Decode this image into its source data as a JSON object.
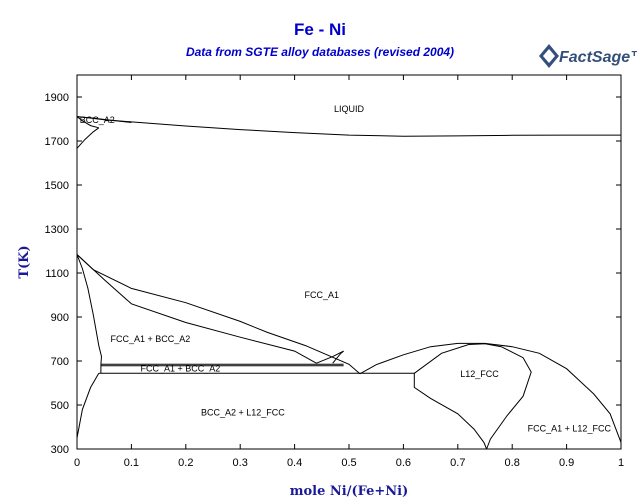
{
  "header": {
    "title": "Fe - Ni",
    "subtitle": "Data from SGTE alloy databases (revised 2004)",
    "logo_text": "FactSage™"
  },
  "chart_data": {
    "type": "line",
    "title": "Fe - Ni",
    "subtitle": "Data from SGTE alloy databases (revised 2004)",
    "xlabel": "mole Ni/(Fe+Ni)",
    "ylabel": "T(K)",
    "xlim": [
      0,
      1
    ],
    "ylim": [
      300,
      2000
    ],
    "x_ticks": [
      "0",
      "0.1",
      "0.2",
      "0.3",
      "0.4",
      "0.5",
      "0.6",
      "0.7",
      "0.8",
      "0.9",
      "1"
    ],
    "y_ticks": [
      "300",
      "500",
      "700",
      "900",
      "1100",
      "1300",
      "1500",
      "1700",
      "1900"
    ],
    "grid": false,
    "line_color": "#000000",
    "region_labels": [
      {
        "text": "LIQUID",
        "x": 0.5,
        "y": 1845
      },
      {
        "text": "BCC_A2",
        "x": 0.005,
        "y": 1795
      },
      {
        "text": "FCC_A1",
        "x": 0.45,
        "y": 1000
      },
      {
        "text": "FCC_A1 + BCC_A2",
        "x": 0.135,
        "y": 799
      },
      {
        "text": "FCC_A1 + BCC_A2",
        "x": 0.19,
        "y": 666
      },
      {
        "text": "L12_FCC",
        "x": 0.74,
        "y": 640
      },
      {
        "text": "BCC_A2 + L12_FCC",
        "x": 0.305,
        "y": 467
      },
      {
        "text": "FCC_A1 + L12_FCC",
        "x": 0.905,
        "y": 394
      }
    ],
    "series": [
      {
        "points": [
          [
            0,
            1811
          ],
          [
            0.02,
            1806
          ],
          [
            0.05,
            1797
          ],
          [
            0.1,
            1787
          ],
          [
            0.2,
            1768
          ],
          [
            0.3,
            1752
          ],
          [
            0.4,
            1738
          ],
          [
            0.5,
            1727
          ],
          [
            0.6,
            1722
          ],
          [
            0.7,
            1723
          ],
          [
            0.8,
            1726
          ],
          [
            0.9,
            1727
          ],
          [
            1,
            1727
          ]
        ]
      },
      {
        "points": [
          [
            0,
            1811
          ],
          [
            0.03,
            1804
          ],
          [
            0.06,
            1795
          ],
          [
            0.1,
            1784
          ]
        ]
      },
      {
        "points": [
          [
            0,
            1811
          ],
          [
            0.01,
            1792
          ],
          [
            0.025,
            1770
          ],
          [
            0.04,
            1760
          ]
        ]
      },
      {
        "points": [
          [
            0,
            1667
          ],
          [
            0.015,
            1708
          ],
          [
            0.03,
            1742
          ],
          [
            0.04,
            1760
          ]
        ]
      },
      {
        "points": [
          [
            0,
            1184
          ],
          [
            0.01,
            1120
          ],
          [
            0.02,
            1030
          ],
          [
            0.03,
            910
          ],
          [
            0.04,
            770
          ],
          [
            0.045,
            720
          ],
          [
            0.044,
            685
          ]
        ]
      },
      {
        "points": [
          [
            0,
            1184
          ],
          [
            0.03,
            1115
          ],
          [
            0.1,
            1030
          ],
          [
            0.2,
            965
          ],
          [
            0.3,
            880
          ],
          [
            0.35,
            830
          ],
          [
            0.42,
            770
          ],
          [
            0.5,
            685
          ],
          [
            0.52,
            642
          ]
        ]
      },
      {
        "points": [
          [
            0,
            1184
          ],
          [
            0.05,
            1070
          ],
          [
            0.1,
            960
          ],
          [
            0.2,
            875
          ],
          [
            0.3,
            808
          ],
          [
            0.4,
            745
          ],
          [
            0.44,
            690
          ]
        ]
      },
      {
        "points": [
          [
            0.044,
            685
          ],
          [
            0.49,
            685
          ]
        ]
      },
      {
        "points": [
          [
            0.044,
            678
          ],
          [
            0.49,
            678
          ]
        ]
      },
      {
        "points": [
          [
            0.44,
            690
          ],
          [
            0.47,
            720
          ],
          [
            0.49,
            745
          ]
        ]
      },
      {
        "points": [
          [
            0.47,
            690
          ],
          [
            0.485,
            735
          ],
          [
            0.49,
            745
          ]
        ]
      },
      {
        "points": [
          [
            0.04,
            644
          ],
          [
            0.62,
            644
          ]
        ]
      },
      {
        "points": [
          [
            0,
            350
          ],
          [
            0.01,
            480
          ],
          [
            0.025,
            580
          ],
          [
            0.04,
            644
          ]
        ]
      },
      {
        "points": [
          [
            0.52,
            642
          ],
          [
            0.55,
            683
          ],
          [
            0.6,
            728
          ],
          [
            0.65,
            765
          ],
          [
            0.7,
            780
          ],
          [
            0.75,
            780
          ],
          [
            0.8,
            765
          ],
          [
            0.85,
            735
          ],
          [
            0.9,
            665
          ],
          [
            0.95,
            550
          ],
          [
            0.98,
            460
          ],
          [
            1,
            330
          ]
        ]
      },
      {
        "points": [
          [
            0.62,
            644
          ],
          [
            0.67,
            735
          ],
          [
            0.72,
            775
          ],
          [
            0.75,
            778
          ],
          [
            0.78,
            765
          ],
          [
            0.82,
            715
          ],
          [
            0.835,
            650
          ],
          [
            0.82,
            540
          ],
          [
            0.79,
            450
          ],
          [
            0.76,
            345
          ],
          [
            0.753,
            300
          ]
        ]
      },
      {
        "points": [
          [
            0.62,
            644
          ],
          [
            0.62,
            580
          ],
          [
            0.65,
            530
          ],
          [
            0.7,
            460
          ],
          [
            0.73,
            390
          ],
          [
            0.748,
            330
          ],
          [
            0.753,
            300
          ]
        ]
      },
      {
        "points": [
          [
            0.044,
            685
          ],
          [
            0.044,
            644
          ]
        ]
      }
    ]
  }
}
